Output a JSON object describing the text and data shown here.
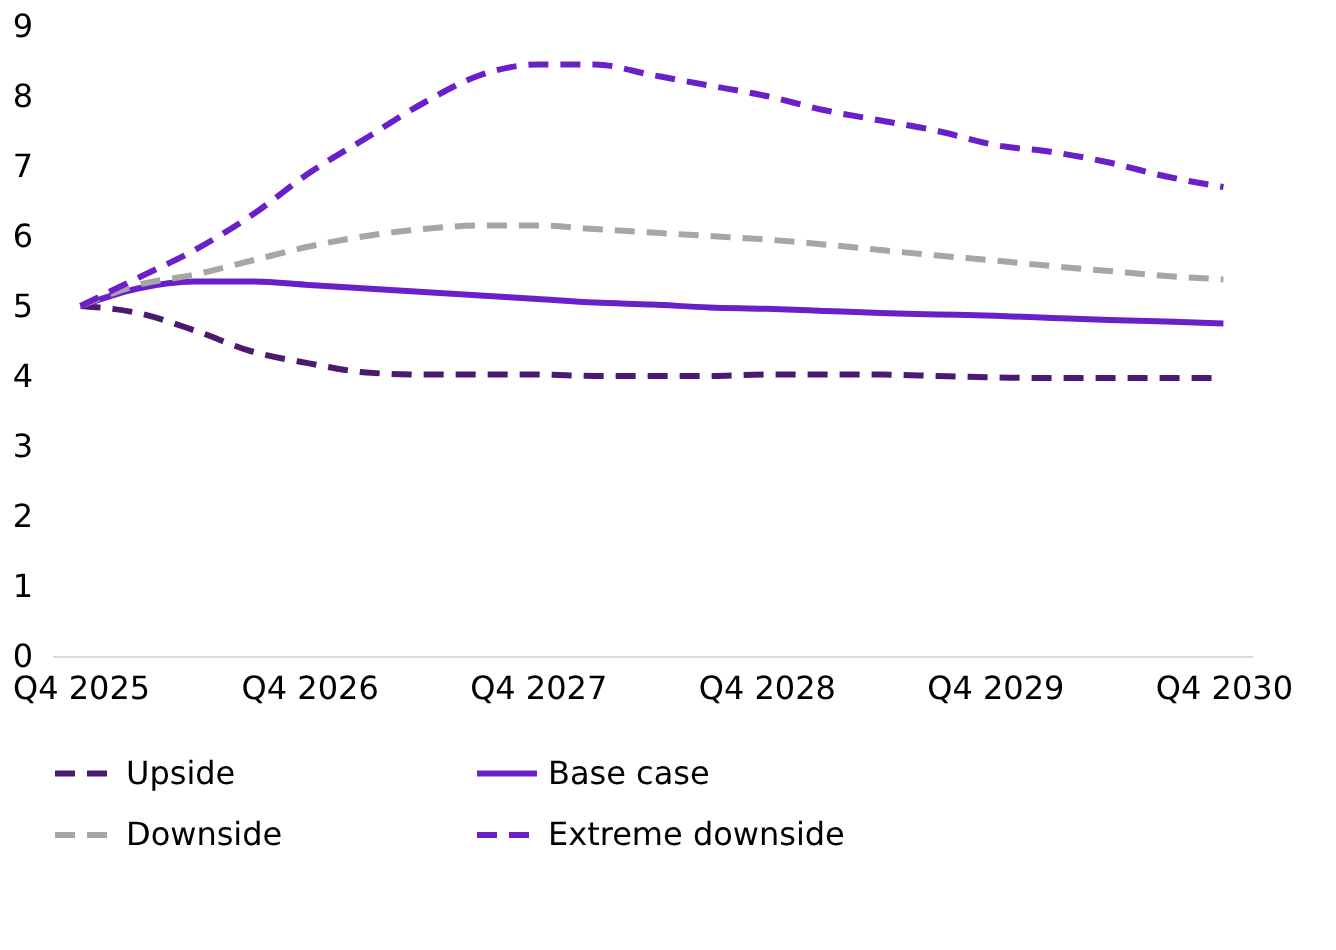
{
  "chart_data": {
    "type": "line",
    "categories": [
      "Q4 2025",
      null,
      null,
      null,
      "Q4 2026",
      null,
      null,
      null,
      "Q4 2027",
      null,
      null,
      null,
      "Q4 2028",
      null,
      null,
      null,
      "Q4 2029",
      null,
      null,
      null,
      "Q4 2030"
    ],
    "series": [
      {
        "name": "Upside",
        "color": "#4b1a6e",
        "line_style": "dashed",
        "values": [
          5.0,
          4.9,
          4.65,
          4.35,
          4.18,
          4.05,
          4.02,
          4.02,
          4.02,
          4.0,
          4.0,
          4.0,
          4.02,
          4.02,
          4.02,
          4.0,
          3.98,
          3.97,
          3.97,
          3.97,
          3.97
        ]
      },
      {
        "name": "Base case",
        "color": "#6a1fc9",
        "line_style": "solid",
        "values": [
          5.0,
          5.25,
          5.35,
          5.35,
          5.3,
          5.25,
          5.2,
          5.15,
          5.1,
          5.05,
          5.02,
          4.98,
          4.96,
          4.93,
          4.9,
          4.88,
          4.86,
          4.83,
          4.8,
          4.78,
          4.75
        ]
      },
      {
        "name": "Downside",
        "color": "#a6a6a6",
        "line_style": "dashed",
        "values": [
          5.0,
          5.3,
          5.45,
          5.65,
          5.85,
          6.0,
          6.1,
          6.15,
          6.15,
          6.1,
          6.05,
          6.0,
          5.95,
          5.88,
          5.8,
          5.72,
          5.65,
          5.57,
          5.5,
          5.43,
          5.38
        ]
      },
      {
        "name": "Extreme downside",
        "color": "#6a1fc9",
        "line_style": "dashed",
        "values": [
          5.0,
          5.4,
          5.8,
          6.3,
          6.9,
          7.4,
          7.9,
          8.3,
          8.45,
          8.45,
          8.3,
          8.15,
          8.0,
          7.8,
          7.65,
          7.5,
          7.3,
          7.2,
          7.05,
          6.85,
          6.7
        ]
      }
    ],
    "ylim": [
      0,
      9
    ],
    "yticks": [
      0,
      1,
      2,
      3,
      4,
      5,
      6,
      7,
      8,
      9
    ],
    "grid": false,
    "legend": "bottom"
  }
}
